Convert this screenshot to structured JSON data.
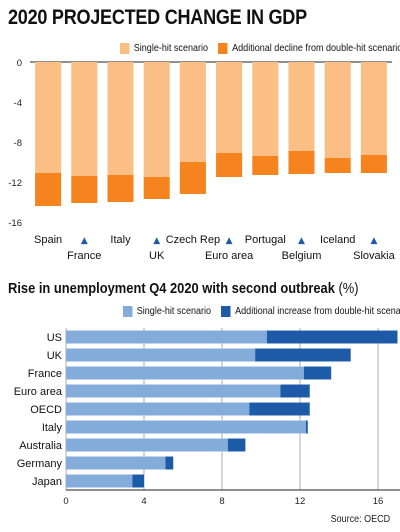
{
  "charts": [
    {
      "title": "2020 PROJECTED CHANGE IN GDP",
      "chart_data": {
        "type": "bar",
        "orientation": "vertical",
        "categories": [
          "Spain",
          "France",
          "Italy",
          "UK",
          "Czech Rep",
          "Euro area",
          "Portugal",
          "Belgium",
          "Iceland",
          "Slovakia"
        ],
        "series": [
          {
            "name": "Single-hit scenario",
            "color": "#fbbf85",
            "values": [
              -11.1,
              -11.4,
              -11.3,
              -11.5,
              -10.0,
              -9.1,
              -9.4,
              -8.9,
              -9.6,
              -9.3
            ]
          },
          {
            "name": "Additional decline from double-hit scenario",
            "color": "#f5841f",
            "values": [
              -3.3,
              -2.7,
              -2.7,
              -2.2,
              -3.2,
              -2.4,
              -1.9,
              -2.3,
              -1.5,
              -1.8
            ]
          }
        ],
        "ylim": [
          -16,
          0
        ],
        "yticks": [
          0,
          -4,
          -8,
          -12,
          -16
        ],
        "legend_position": "top-right",
        "label_marker": "▲"
      }
    },
    {
      "title": "Rise in unemployment Q4 2020 with second outbreak",
      "title_unit": "(%)",
      "chart_data": {
        "type": "bar",
        "orientation": "horizontal",
        "categories": [
          "US",
          "UK",
          "France",
          "Euro area",
          "OECD",
          "Italy",
          "Australia",
          "Germany",
          "Japan"
        ],
        "series": [
          {
            "name": "Single-hit scenario",
            "color": "#84acdb",
            "values": [
              10.3,
              9.7,
              12.2,
              11.0,
              9.4,
              12.3,
              8.3,
              5.1,
              3.4
            ]
          },
          {
            "name": "Additional increase from double-hit scenario",
            "color": "#1d5ba9",
            "values": [
              6.7,
              4.9,
              1.4,
              1.5,
              3.1,
              0.1,
              0.9,
              0.4,
              0.6
            ]
          }
        ],
        "xlim": [
          0,
          17
        ],
        "xticks": [
          0,
          4,
          8,
          12,
          16
        ],
        "legend_position": "top-right"
      }
    }
  ],
  "source": "Source: OECD"
}
